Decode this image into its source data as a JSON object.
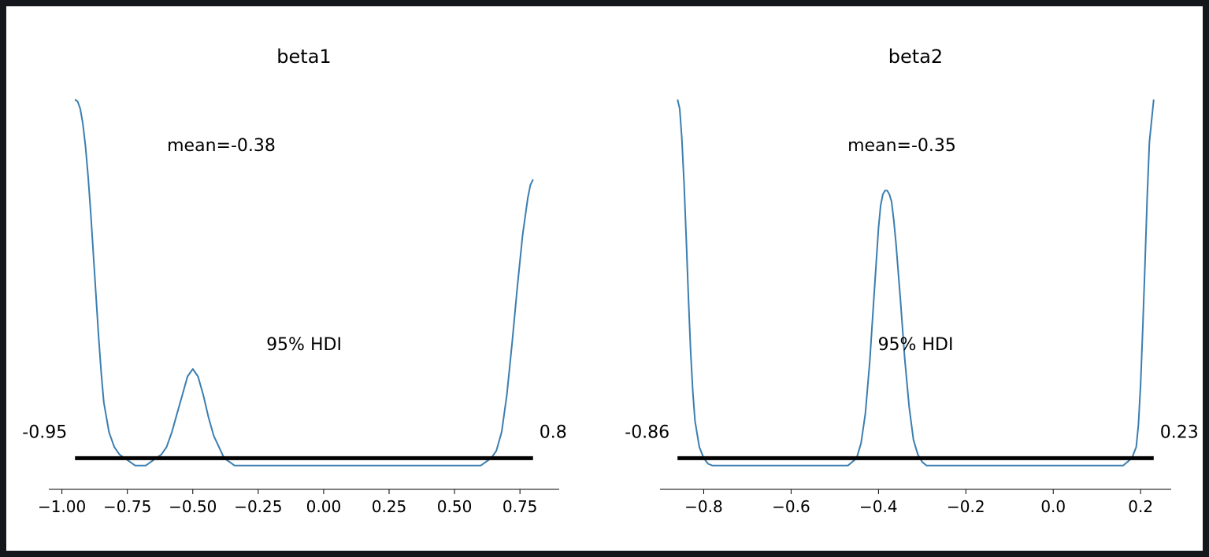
{
  "chart_data": [
    {
      "type": "line",
      "title": "beta1",
      "line_color": "#3b7eb0",
      "hdi_color": "#000000",
      "mean_label": "mean=-0.38",
      "hdi_label": "95% HDI",
      "hdi": {
        "low": -0.95,
        "high": 0.8,
        "low_label": "-0.95",
        "high_label": "0.8"
      },
      "xlim": [
        -1.05,
        0.9
      ],
      "ylim": [
        -0.05,
        1.0
      ],
      "xticks": [
        -1.0,
        -0.75,
        -0.5,
        -0.25,
        0.0,
        0.25,
        0.5,
        0.75
      ],
      "xtick_labels": [
        "−1.00",
        "−0.75",
        "−0.50",
        "−0.25",
        "0.00",
        "0.25",
        "0.50",
        "0.75"
      ],
      "x": [
        -0.95,
        -0.94,
        -0.93,
        -0.92,
        -0.91,
        -0.9,
        -0.89,
        -0.88,
        -0.87,
        -0.86,
        -0.85,
        -0.84,
        -0.82,
        -0.8,
        -0.78,
        -0.76,
        -0.74,
        -0.72,
        -0.7,
        -0.68,
        -0.66,
        -0.64,
        -0.62,
        -0.6,
        -0.58,
        -0.56,
        -0.54,
        -0.52,
        -0.5,
        -0.48,
        -0.46,
        -0.44,
        -0.42,
        -0.4,
        -0.38,
        -0.36,
        -0.34,
        -0.3,
        -0.2,
        -0.1,
        0.0,
        0.1,
        0.2,
        0.3,
        0.4,
        0.5,
        0.6,
        0.62,
        0.64,
        0.66,
        0.68,
        0.7,
        0.72,
        0.74,
        0.76,
        0.78,
        0.79,
        0.8
      ],
      "y": [
        0.965,
        0.96,
        0.94,
        0.9,
        0.84,
        0.76,
        0.66,
        0.55,
        0.44,
        0.33,
        0.23,
        0.15,
        0.07,
        0.03,
        0.01,
        0.0,
        -0.01,
        -0.02,
        -0.02,
        -0.02,
        -0.01,
        0.0,
        0.01,
        0.03,
        0.07,
        0.12,
        0.17,
        0.22,
        0.24,
        0.22,
        0.17,
        0.11,
        0.06,
        0.03,
        0.0,
        -0.01,
        -0.02,
        -0.02,
        -0.02,
        -0.02,
        -0.02,
        -0.02,
        -0.02,
        -0.02,
        -0.02,
        -0.02,
        -0.02,
        -0.01,
        0.0,
        0.02,
        0.07,
        0.17,
        0.31,
        0.46,
        0.6,
        0.7,
        0.735,
        0.75
      ]
    },
    {
      "type": "line",
      "title": "beta2",
      "line_color": "#3b7eb0",
      "hdi_color": "#000000",
      "mean_label": "mean=-0.35",
      "hdi_label": "95% HDI",
      "hdi": {
        "low": -0.86,
        "high": 0.23,
        "low_label": "-0.86",
        "high_label": "0.23"
      },
      "xlim": [
        -0.9,
        0.27
      ],
      "ylim": [
        -0.05,
        1.0
      ],
      "xticks": [
        -0.8,
        -0.6,
        -0.4,
        -0.2,
        0.0,
        0.2
      ],
      "xtick_labels": [
        "−0.8",
        "−0.6",
        "−0.4",
        "−0.2",
        "0.0",
        "0.2"
      ],
      "x": [
        -0.86,
        -0.855,
        -0.85,
        -0.845,
        -0.84,
        -0.835,
        -0.83,
        -0.825,
        -0.82,
        -0.81,
        -0.8,
        -0.79,
        -0.78,
        -0.7,
        -0.6,
        -0.5,
        -0.47,
        -0.46,
        -0.45,
        -0.44,
        -0.43,
        -0.42,
        -0.41,
        -0.4,
        -0.395,
        -0.39,
        -0.385,
        -0.38,
        -0.375,
        -0.37,
        -0.365,
        -0.36,
        -0.35,
        -0.34,
        -0.33,
        -0.32,
        -0.31,
        -0.3,
        -0.29,
        -0.2,
        -0.1,
        0.0,
        0.1,
        0.16,
        0.17,
        0.18,
        0.19,
        0.195,
        0.2,
        0.205,
        0.21,
        0.215,
        0.22,
        0.23
      ],
      "y": [
        0.965,
        0.94,
        0.86,
        0.74,
        0.59,
        0.43,
        0.29,
        0.18,
        0.1,
        0.03,
        0.0,
        -0.015,
        -0.02,
        -0.02,
        -0.02,
        -0.02,
        -0.02,
        -0.01,
        0.0,
        0.04,
        0.12,
        0.26,
        0.44,
        0.62,
        0.68,
        0.71,
        0.72,
        0.72,
        0.71,
        0.69,
        0.64,
        0.58,
        0.43,
        0.27,
        0.14,
        0.05,
        0.01,
        -0.01,
        -0.02,
        -0.02,
        -0.02,
        -0.02,
        -0.02,
        -0.02,
        -0.01,
        0.0,
        0.03,
        0.09,
        0.2,
        0.35,
        0.52,
        0.7,
        0.85,
        0.965
      ]
    }
  ]
}
